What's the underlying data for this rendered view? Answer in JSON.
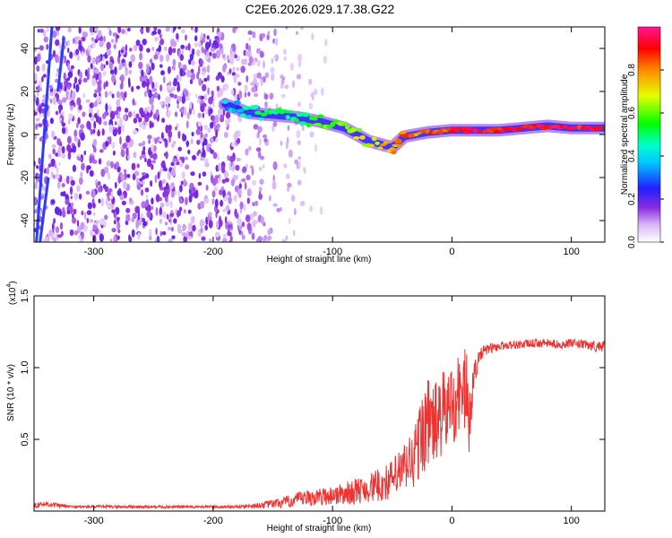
{
  "title": "C2E6.2026.029.17.38.G22",
  "chart_data": [
    {
      "type": "heatmap",
      "name": "spectrogram",
      "title": "C2E6.2026.029.17.38.G22",
      "xlabel": "Height of straight line (km)",
      "ylabel": "Frequency (Hz)",
      "xlim": [
        -350,
        128
      ],
      "ylim": [
        -50,
        50
      ],
      "xticks": [
        -300,
        -200,
        -100,
        0,
        100
      ],
      "yticks": [
        -40,
        -20,
        0,
        20,
        40
      ],
      "colorbar": {
        "label": "Normalized spectral amplitude",
        "range": [
          0,
          1
        ],
        "ticks": [
          0.0,
          0.2,
          0.4,
          0.6,
          0.8
        ],
        "colors": [
          "#ffffff",
          "#8a2be2",
          "#0000ff",
          "#00ffff",
          "#00ff00",
          "#ffff00",
          "#ff0000",
          "#ff1493"
        ]
      },
      "signal_track": {
        "x": [
          -190,
          -170,
          -150,
          -130,
          -110,
          -90,
          -70,
          -50,
          -40,
          -20,
          0,
          20,
          40,
          60,
          80,
          100,
          128
        ],
        "frequency": [
          14,
          10,
          9,
          8,
          6,
          3,
          -3,
          -6,
          -1,
          1,
          2,
          2,
          2,
          3,
          4,
          3,
          3
        ],
        "amplitude": [
          0.35,
          0.45,
          0.5,
          0.5,
          0.6,
          0.65,
          0.7,
          0.75,
          0.8,
          0.85,
          0.9,
          0.95,
          0.9,
          0.9,
          0.95,
          0.9,
          0.9
        ]
      },
      "noise_region_x": [
        -350,
        -140
      ]
    },
    {
      "type": "line",
      "name": "snr",
      "xlabel": "Height of straight line (km)",
      "ylabel": "SNR (10 * v/v)",
      "scale_label": "(x10",
      "scale_exponent": "4",
      "xlim": [
        -350,
        128
      ],
      "ylim": [
        0,
        1.5
      ],
      "xticks": [
        -300,
        -200,
        -100,
        0,
        100
      ],
      "yticks": [
        0.5,
        1.0,
        1.5
      ],
      "ytick_labels": [
        "0.5",
        "1.0",
        "1.5"
      ],
      "color": "#ee3333",
      "series": [
        {
          "name": "SNR",
          "x": [
            -350,
            -340,
            -320,
            -300,
            -280,
            -260,
            -240,
            -220,
            -200,
            -180,
            -160,
            -150,
            -140,
            -130,
            -120,
            -110,
            -100,
            -90,
            -80,
            -70,
            -60,
            -50,
            -45,
            -40,
            -35,
            -30,
            -25,
            -20,
            -15,
            -10,
            -5,
            0,
            5,
            10,
            12,
            14,
            16,
            20,
            25,
            30,
            40,
            50,
            60,
            70,
            80,
            90,
            100,
            110,
            120,
            128
          ],
          "y": [
            0.04,
            0.05,
            0.03,
            0.03,
            0.03,
            0.03,
            0.03,
            0.03,
            0.03,
            0.03,
            0.04,
            0.05,
            0.06,
            0.08,
            0.09,
            0.1,
            0.11,
            0.12,
            0.14,
            0.16,
            0.18,
            0.22,
            0.26,
            0.3,
            0.34,
            0.4,
            0.55,
            0.62,
            0.6,
            0.65,
            0.7,
            0.75,
            0.8,
            0.85,
            0.9,
            0.5,
            0.8,
            1.0,
            1.1,
            1.13,
            1.15,
            1.16,
            1.16,
            1.17,
            1.17,
            1.16,
            1.17,
            1.16,
            1.15,
            1.15
          ],
          "spread": [
            0.02,
            0.02,
            0.01,
            0.01,
            0.01,
            0.01,
            0.01,
            0.01,
            0.01,
            0.01,
            0.02,
            0.03,
            0.04,
            0.05,
            0.06,
            0.06,
            0.07,
            0.08,
            0.09,
            0.1,
            0.12,
            0.14,
            0.16,
            0.18,
            0.22,
            0.25,
            0.3,
            0.32,
            0.3,
            0.3,
            0.3,
            0.3,
            0.3,
            0.32,
            0.35,
            0.2,
            0.2,
            0.08,
            0.05,
            0.04,
            0.03,
            0.03,
            0.03,
            0.03,
            0.03,
            0.03,
            0.03,
            0.03,
            0.04,
            0.04
          ]
        }
      ]
    }
  ]
}
